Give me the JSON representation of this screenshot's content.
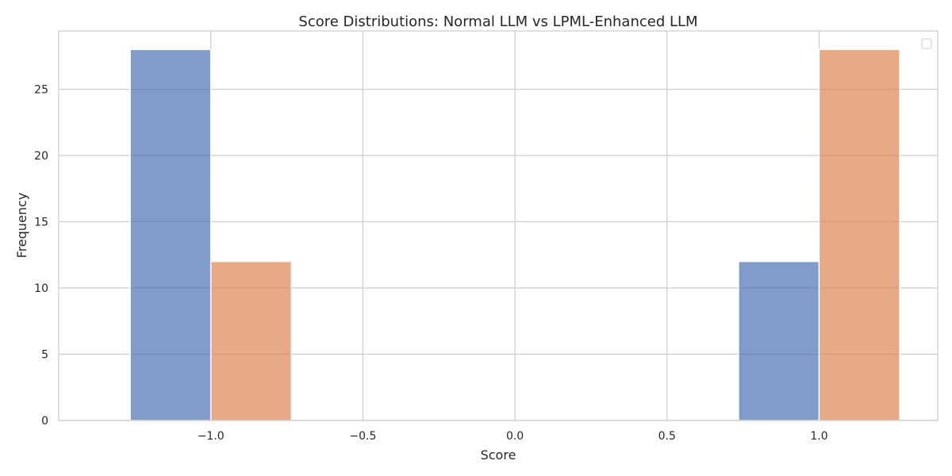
{
  "chart_data": {
    "type": "bar",
    "title": "Score Distributions: Normal LLM vs LPML-Enhanced LLM",
    "xlabel": "Score",
    "ylabel": "Frequency",
    "xlim": [
      -1.5,
      1.39
    ],
    "ylim": [
      0,
      29.4
    ],
    "xticks": [
      "−1.0",
      "−0.5",
      "0.0",
      "0.5",
      "1.0"
    ],
    "xtick_values": [
      -1.0,
      -0.5,
      0.0,
      0.5,
      1.0
    ],
    "yticks": [
      "0",
      "5",
      "10",
      "15",
      "20",
      "25"
    ],
    "ytick_values": [
      0,
      5,
      10,
      15,
      20,
      25
    ],
    "grid": true,
    "legend": "top-right (empty)",
    "series": [
      {
        "color": "#4c72b0",
        "bins": [
          {
            "x0": -1.265,
            "x1": -1.0,
            "value": 28
          },
          {
            "x0": 0.735,
            "x1": 1.0,
            "value": 12
          }
        ]
      },
      {
        "color": "#dd8452",
        "bins": [
          {
            "x0": -1.0,
            "x1": -0.735,
            "value": 12
          },
          {
            "x0": 1.0,
            "x1": 1.265,
            "value": 28
          }
        ]
      }
    ]
  }
}
